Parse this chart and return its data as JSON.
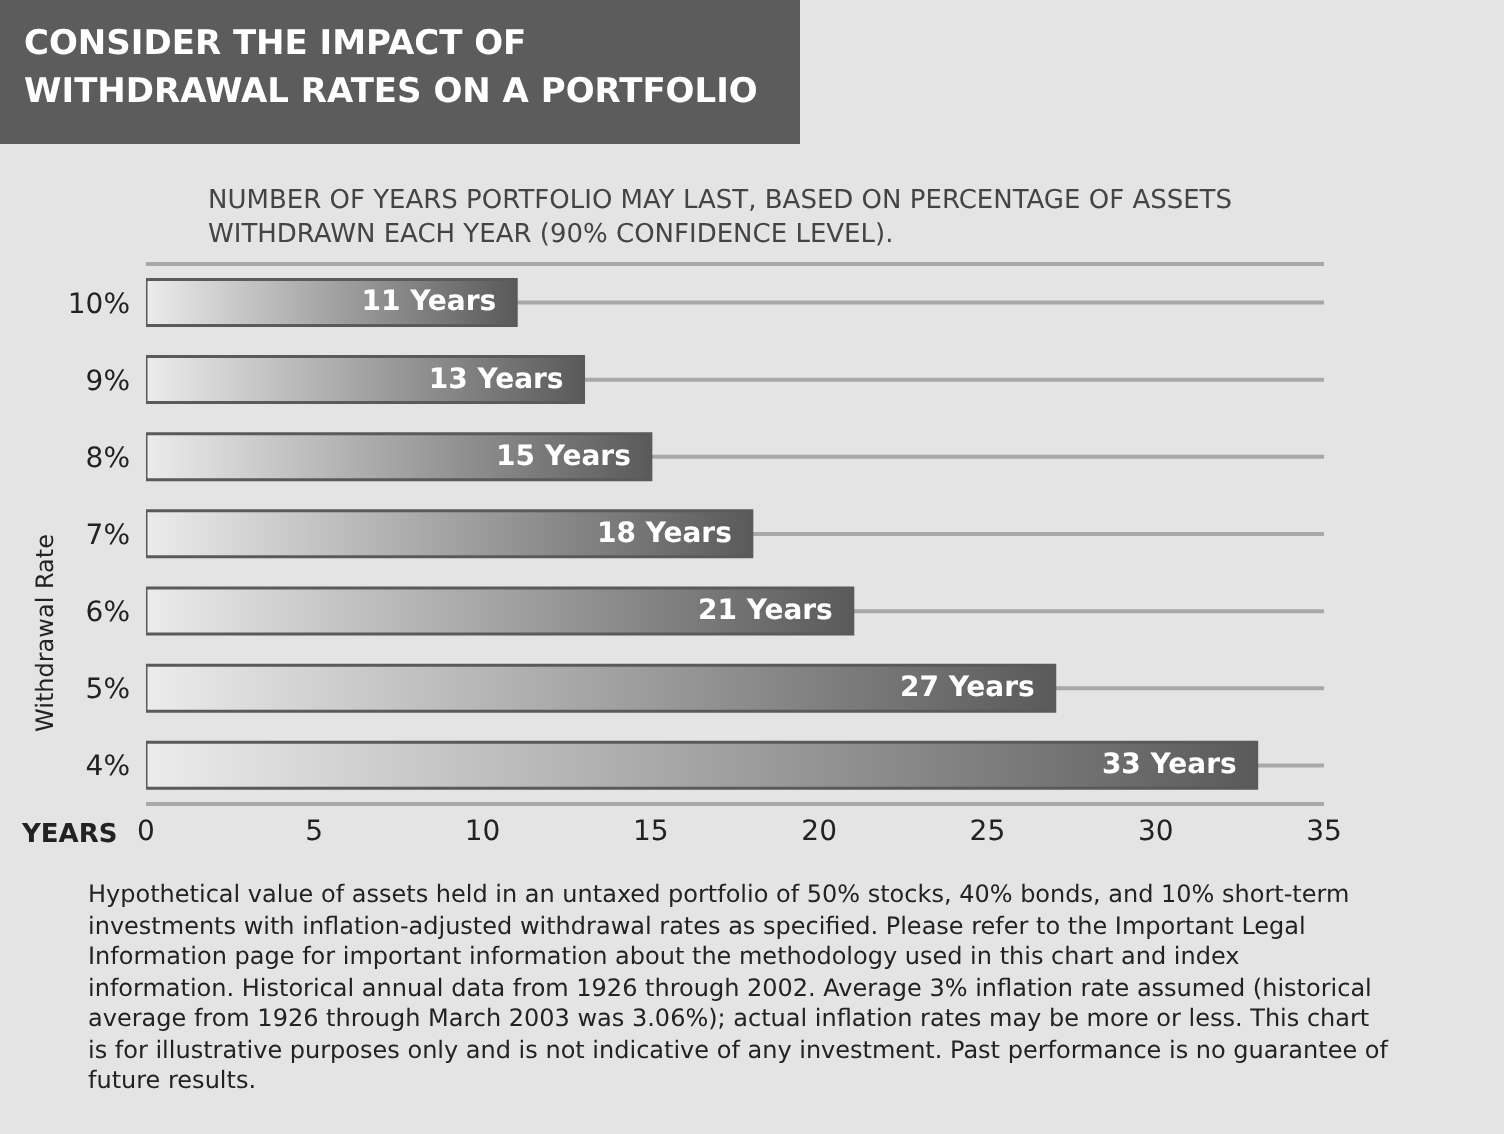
{
  "chart_data": {
    "type": "bar",
    "orientation": "horizontal",
    "title": "CONSIDER THE IMPACT OF WITHDRAWAL RATES ON A PORTFOLIO",
    "subtitle": "NUMBER OF YEARS PORTFOLIO MAY LAST, BASED ON PERCENTAGE OF ASSETS WITHDRAWN EACH YEAR (90% CONFIDENCE LEVEL).",
    "categories": [
      "10%",
      "9%",
      "8%",
      "7%",
      "6%",
      "5%",
      "4%"
    ],
    "values": [
      11,
      13,
      15,
      18,
      21,
      27,
      33
    ],
    "value_labels": [
      "11 Years",
      "13 Years",
      "15 Years",
      "18 Years",
      "21 Years",
      "27 Years",
      "33 Years"
    ],
    "color": "#5a5a5a",
    "xlim": [
      0,
      35
    ],
    "xticks": [
      0,
      5,
      10,
      15,
      20,
      25,
      30,
      35
    ],
    "xlabel": "YEARS",
    "ylabel": "Withdrawal Rate",
    "grid": "y",
    "annotations": [
      "Hypothetical value of assets held in an untaxed portfolio of 50% stocks, 40% bonds, and 10% short-term investments with inflation-adjusted withdrawal rates as specified. Please refer to the Important Legal Information page for important information about the methodology used in this chart and index information. Historical annual data from 1926 through 2002. Average 3% inflation rate assumed (historical average from 1926 through March 2003 was 3.06%); actual inflation rates may be more or less. This chart is for illustrative purposes only and is not indicative of any investment. Past performance is no guarantee of future results."
    ]
  }
}
